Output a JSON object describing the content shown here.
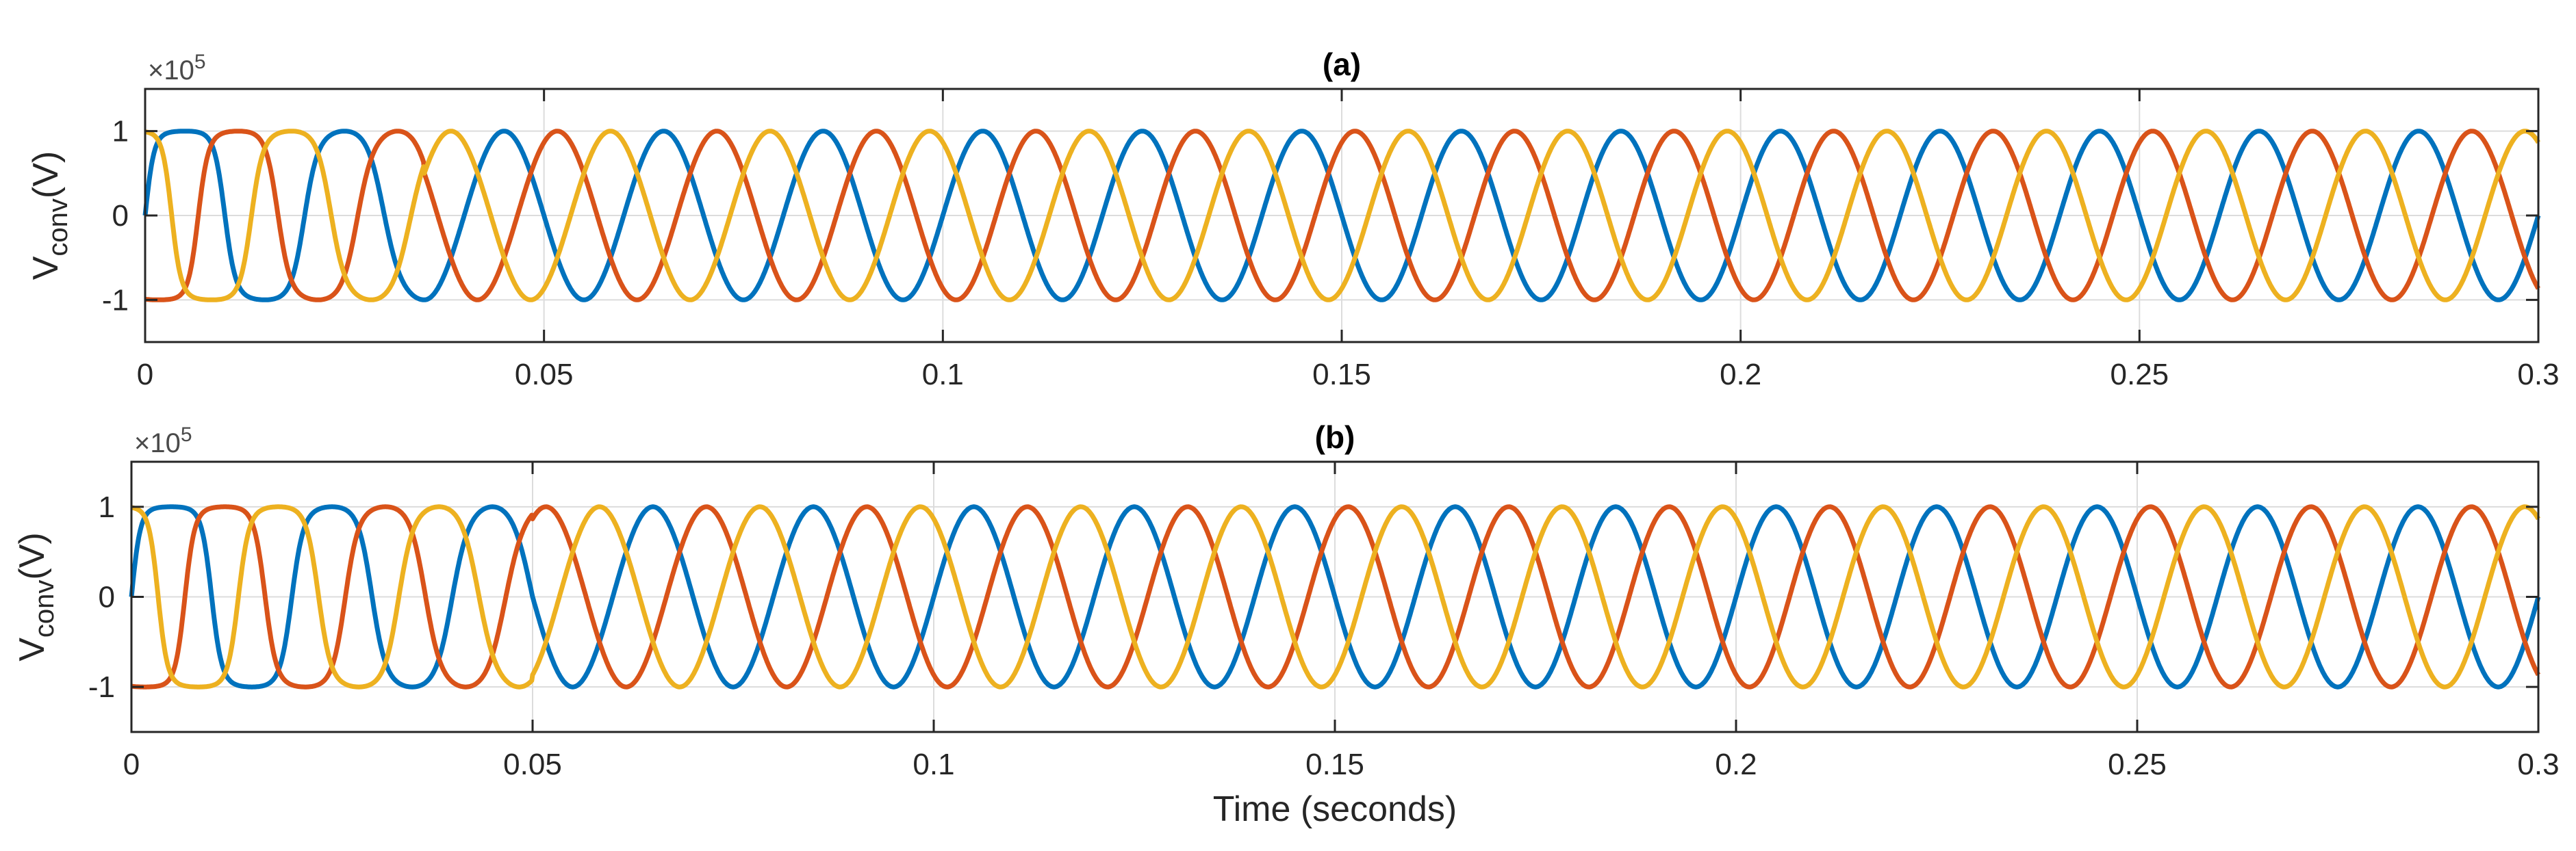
{
  "chart_data": [
    {
      "type": "line",
      "title": "(a)",
      "xlabel": "",
      "ylabel": "V",
      "ylabel_subscript": "conv",
      "ylabel_unit": "(V)",
      "y_multiplier_base": "×10",
      "y_multiplier_exponent": "5",
      "xlim": [
        0,
        0.3
      ],
      "ylim": [
        -150000,
        150000
      ],
      "x_ticks": [
        0,
        0.05,
        0.1,
        0.15,
        0.2,
        0.25,
        0.3
      ],
      "x_tick_labels": [
        "0",
        "0.05",
        "0.1",
        "0.15",
        "0.2",
        "0.25",
        "0.3"
      ],
      "y_ticks": [
        -100000,
        0,
        100000
      ],
      "y_tick_labels": [
        "-1",
        "0",
        "1"
      ],
      "grid": true,
      "signal": {
        "frequency_hz": 50,
        "amplitude_v": 100000,
        "phase_shifts_deg": [
          0,
          -120,
          120
        ],
        "transient_end_s": 0.035
      },
      "series": [
        {
          "color": "#0072BD"
        },
        {
          "color": "#D95319"
        },
        {
          "color": "#EDB120"
        }
      ]
    },
    {
      "type": "line",
      "title": "(b)",
      "xlabel": "Time (seconds)",
      "ylabel": "V",
      "ylabel_subscript": "conv",
      "ylabel_unit": "(V)",
      "y_multiplier_base": "×10",
      "y_multiplier_exponent": "5",
      "xlim": [
        0,
        0.3
      ],
      "ylim": [
        -150000,
        150000
      ],
      "x_ticks": [
        0,
        0.05,
        0.1,
        0.15,
        0.2,
        0.25,
        0.3
      ],
      "x_tick_labels": [
        "0",
        "0.05",
        "0.1",
        "0.15",
        "0.2",
        "0.25",
        "0.3"
      ],
      "y_ticks": [
        -100000,
        0,
        100000
      ],
      "y_tick_labels": [
        "-1",
        "0",
        "1"
      ],
      "grid": true,
      "signal": {
        "frequency_hz": 50,
        "amplitude_v": 100000,
        "phase_shifts_deg": [
          0,
          -120,
          120
        ],
        "transient_end_s": 0.05
      },
      "series": [
        {
          "color": "#0072BD"
        },
        {
          "color": "#D95319"
        },
        {
          "color": "#EDB120"
        }
      ]
    }
  ]
}
